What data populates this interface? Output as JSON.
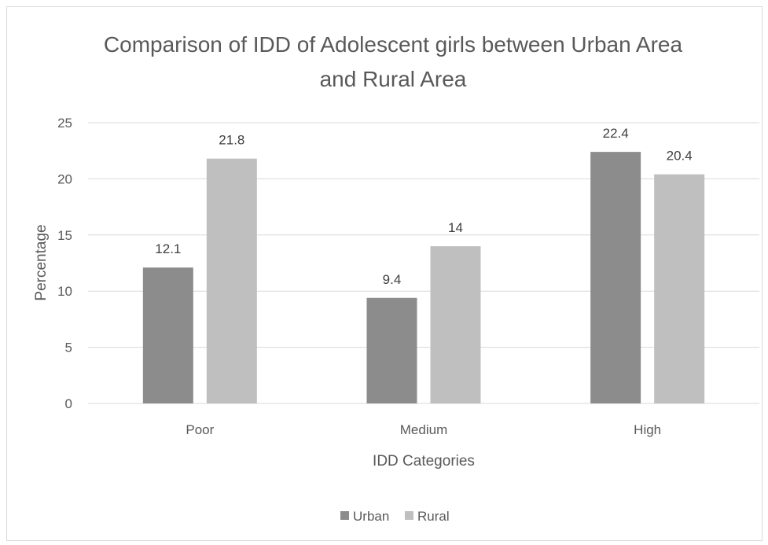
{
  "chart_data": {
    "type": "bar",
    "title_lines": [
      "Comparison of IDD of Adolescent girls between Urban Area",
      "and Rural Area"
    ],
    "xlabel": "IDD Categories",
    "ylabel": "Percentage",
    "categories": [
      "Poor",
      "Medium",
      "High"
    ],
    "ylim": [
      0,
      25
    ],
    "yticks": [
      0,
      5,
      10,
      15,
      20,
      25
    ],
    "grid": true,
    "legend_position": "bottom",
    "series": [
      {
        "name": "Urban",
        "color": "#8c8c8c",
        "values": [
          12.1,
          9.4,
          22.4
        ],
        "labels": [
          "12.1",
          "9.4",
          "22.4"
        ]
      },
      {
        "name": "Rural",
        "color": "#bfbfbf",
        "values": [
          21.8,
          14,
          20.4
        ],
        "labels": [
          "21.8",
          "14",
          "20.4"
        ]
      }
    ]
  }
}
